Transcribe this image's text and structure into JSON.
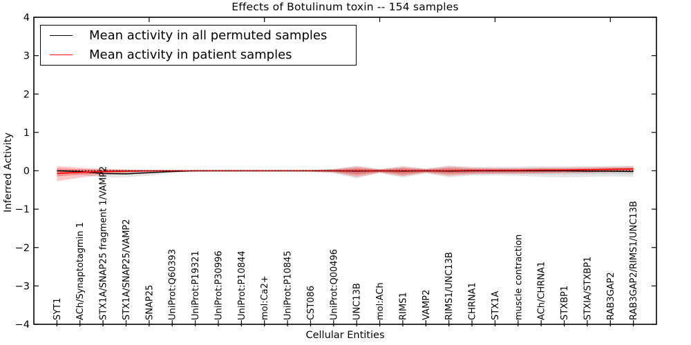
{
  "chart_data": {
    "type": "line",
    "title": "Effects of Botulinum toxin -- 154 samples",
    "xlabel": "Cellular Entities",
    "ylabel": "Inferred Activity",
    "ylim": [
      -4,
      4
    ],
    "xlim": [
      0,
      27
    ],
    "grid": false,
    "legend_position": "upper left",
    "ytick_values": [
      -4,
      -3,
      -2,
      -1,
      0,
      1,
      2,
      3,
      4
    ],
    "ytick_labels": [
      "−4",
      "−3",
      "−2",
      "−1",
      "0",
      "1",
      "2",
      "3",
      "4"
    ],
    "x_major_ticks": [
      5,
      10,
      15,
      20,
      25
    ],
    "zero_reference_line": {
      "y": 0,
      "style": "dotted",
      "color": "#000000"
    },
    "colors": {
      "permuted": "#000000",
      "patient": "#ff0000"
    },
    "categories": [
      "SYT1",
      "ACh/Synaptotagmin 1",
      "STX1A/SNAP25 fragment 1/VAMP2",
      "STX1A/SNAP25/VAMP2",
      "SNAP25",
      "UniProt:Q60393",
      "UniProt:P19321",
      "UniProt:P30996",
      "UniProt:P10844",
      "mol:Ca2+",
      "UniProt:P10845",
      "CST086",
      "UniProt:Q00496",
      "UNC13B",
      "mol:ACh",
      "RIMS1",
      "VAMP2",
      "RIMS1/UNC13B",
      "CHRNA1",
      "STX1A",
      "muscle contraction",
      "ACh/CHRNA1",
      "STXBP1",
      "STXIA/STXBP1",
      "RAB3GAP2",
      "RAB3GAP2/RIMS1/UNC13B"
    ],
    "x": [
      1,
      2,
      3,
      4,
      5,
      6,
      7,
      8,
      9,
      10,
      11,
      12,
      13,
      14,
      15,
      16,
      17,
      18,
      19,
      20,
      21,
      22,
      23,
      24,
      25,
      26
    ],
    "series": [
      {
        "name": "Mean activity in all permuted samples",
        "color": "#000000",
        "values": [
          0.0,
          -0.02,
          -0.07,
          -0.08,
          -0.05,
          -0.02,
          0,
          0,
          0,
          0,
          0,
          0,
          0,
          -0.01,
          0,
          -0.01,
          0,
          -0.01,
          0,
          0,
          0,
          0,
          0,
          -0.01,
          -0.01,
          -0.02
        ]
      },
      {
        "name": "Mean activity in patient samples",
        "color": "#ff0000",
        "values": [
          -0.07,
          -0.04,
          -0.02,
          -0.01,
          0,
          0,
          0,
          0,
          0,
          0,
          0,
          0,
          0,
          0,
          0,
          0,
          0,
          0,
          0.01,
          0.01,
          0.01,
          0.02,
          0.02,
          0.03,
          0.04,
          0.05
        ]
      }
    ],
    "bands": [
      {
        "series": "permuted",
        "level": "outer",
        "color": "#000000",
        "opacity": 0.1,
        "upper": [
          0.02,
          0.03,
          0.03,
          0.03,
          0.02,
          0.02,
          0.02,
          0.02,
          0.02,
          0.02,
          0.02,
          0.02,
          0.05,
          0.13,
          0.05,
          0.12,
          0.06,
          0.14,
          0.1,
          0.1,
          0.11,
          0.12,
          0.12,
          0.12,
          0.13,
          0.14
        ],
        "lower": [
          -0.04,
          -0.1,
          -0.18,
          -0.17,
          -0.13,
          -0.06,
          -0.03,
          -0.02,
          -0.02,
          -0.02,
          -0.02,
          -0.03,
          -0.07,
          -0.2,
          -0.06,
          -0.18,
          -0.07,
          -0.17,
          -0.12,
          -0.12,
          -0.13,
          -0.16,
          -0.17,
          -0.16,
          -0.15,
          -0.16
        ]
      },
      {
        "series": "permuted",
        "level": "inner",
        "color": "#000000",
        "opacity": 0.09,
        "upper": [
          0.01,
          0.02,
          0.02,
          0.02,
          0.01,
          0.01,
          0.01,
          0.01,
          0.01,
          0.01,
          0.01,
          0.01,
          0.03,
          0.07,
          0.03,
          0.07,
          0.03,
          0.08,
          0.06,
          0.06,
          0.06,
          0.07,
          0.07,
          0.07,
          0.07,
          0.08
        ],
        "lower": [
          -0.02,
          -0.06,
          -0.1,
          -0.09,
          -0.07,
          -0.03,
          -0.02,
          -0.01,
          -0.01,
          -0.01,
          -0.01,
          -0.02,
          -0.04,
          -0.11,
          -0.03,
          -0.1,
          -0.04,
          -0.09,
          -0.07,
          -0.07,
          -0.07,
          -0.09,
          -0.09,
          -0.09,
          -0.08,
          -0.09
        ]
      },
      {
        "series": "patient",
        "level": "outer",
        "color": "#ff0000",
        "opacity": 0.22,
        "upper": [
          0.12,
          0.08,
          0.05,
          0.03,
          0.02,
          0.02,
          0.01,
          0.01,
          0.01,
          0.01,
          0.01,
          0.02,
          0.04,
          0.11,
          0.04,
          0.1,
          0.05,
          0.11,
          0.08,
          0.07,
          0.07,
          0.08,
          0.08,
          0.09,
          0.1,
          0.11
        ],
        "lower": [
          -0.27,
          -0.18,
          -0.1,
          -0.06,
          -0.04,
          -0.03,
          -0.01,
          -0.01,
          -0.01,
          -0.01,
          -0.01,
          -0.02,
          -0.04,
          -0.16,
          -0.05,
          -0.14,
          -0.05,
          -0.13,
          -0.09,
          -0.08,
          -0.08,
          -0.07,
          -0.06,
          -0.05,
          -0.04,
          -0.03
        ]
      },
      {
        "series": "patient",
        "level": "inner",
        "color": "#ff0000",
        "opacity": 0.25,
        "upper": [
          0.07,
          0.04,
          0.03,
          0.02,
          0.01,
          0.01,
          0.01,
          0.01,
          0.01,
          0.01,
          0.01,
          0.01,
          0.02,
          0.06,
          0.02,
          0.06,
          0.03,
          0.06,
          0.04,
          0.04,
          0.04,
          0.04,
          0.04,
          0.05,
          0.06,
          0.06
        ],
        "lower": [
          -0.15,
          -0.1,
          -0.06,
          -0.03,
          -0.02,
          -0.02,
          -0.01,
          -0.01,
          -0.01,
          -0.01,
          -0.01,
          -0.01,
          -0.02,
          -0.09,
          -0.03,
          -0.08,
          -0.03,
          -0.07,
          -0.05,
          -0.04,
          -0.04,
          -0.04,
          -0.03,
          -0.03,
          -0.02,
          -0.02
        ]
      }
    ]
  }
}
